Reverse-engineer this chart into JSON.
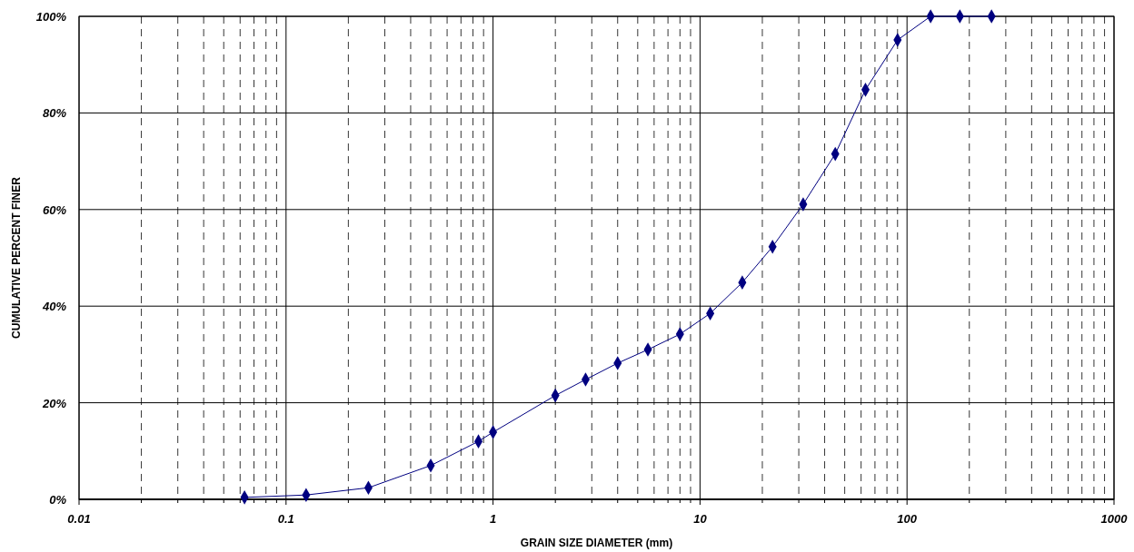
{
  "chart_data": {
    "type": "line",
    "xlabel": "GRAIN SIZE DIAMETER (mm)",
    "ylabel": "CUMULATIVE PERCENT FINER",
    "log": "x",
    "grid": true,
    "marker": "diamond",
    "line_style": "solid",
    "xlim": [
      0.01,
      1000
    ],
    "xticks": [
      0.01,
      0.1,
      1,
      10,
      100,
      1000
    ],
    "ylim": [
      0,
      100
    ],
    "yticks": [
      {
        "value": 0,
        "label": "0%"
      },
      {
        "value": 20,
        "label": "20%"
      },
      {
        "value": 40,
        "label": "40%"
      },
      {
        "value": 60,
        "label": "60%"
      },
      {
        "value": 80,
        "label": "80%"
      },
      {
        "value": 100,
        "label": "100%"
      }
    ],
    "series": [
      {
        "color": "#000080",
        "x": [
          0.063,
          0.125,
          0.25,
          0.5,
          0.85,
          1,
          2,
          2.8,
          4,
          5.6,
          8,
          11.2,
          16,
          22.4,
          31.5,
          45,
          63,
          90,
          130,
          180,
          256
        ],
        "values": [
          0.4,
          0.9,
          2.4,
          7,
          12,
          13.9,
          21.5,
          24.8,
          28.2,
          31,
          34.2,
          38.5,
          44.9,
          52.3,
          61.1,
          71.5,
          84.8,
          95.1,
          100,
          100,
          100
        ]
      }
    ]
  }
}
